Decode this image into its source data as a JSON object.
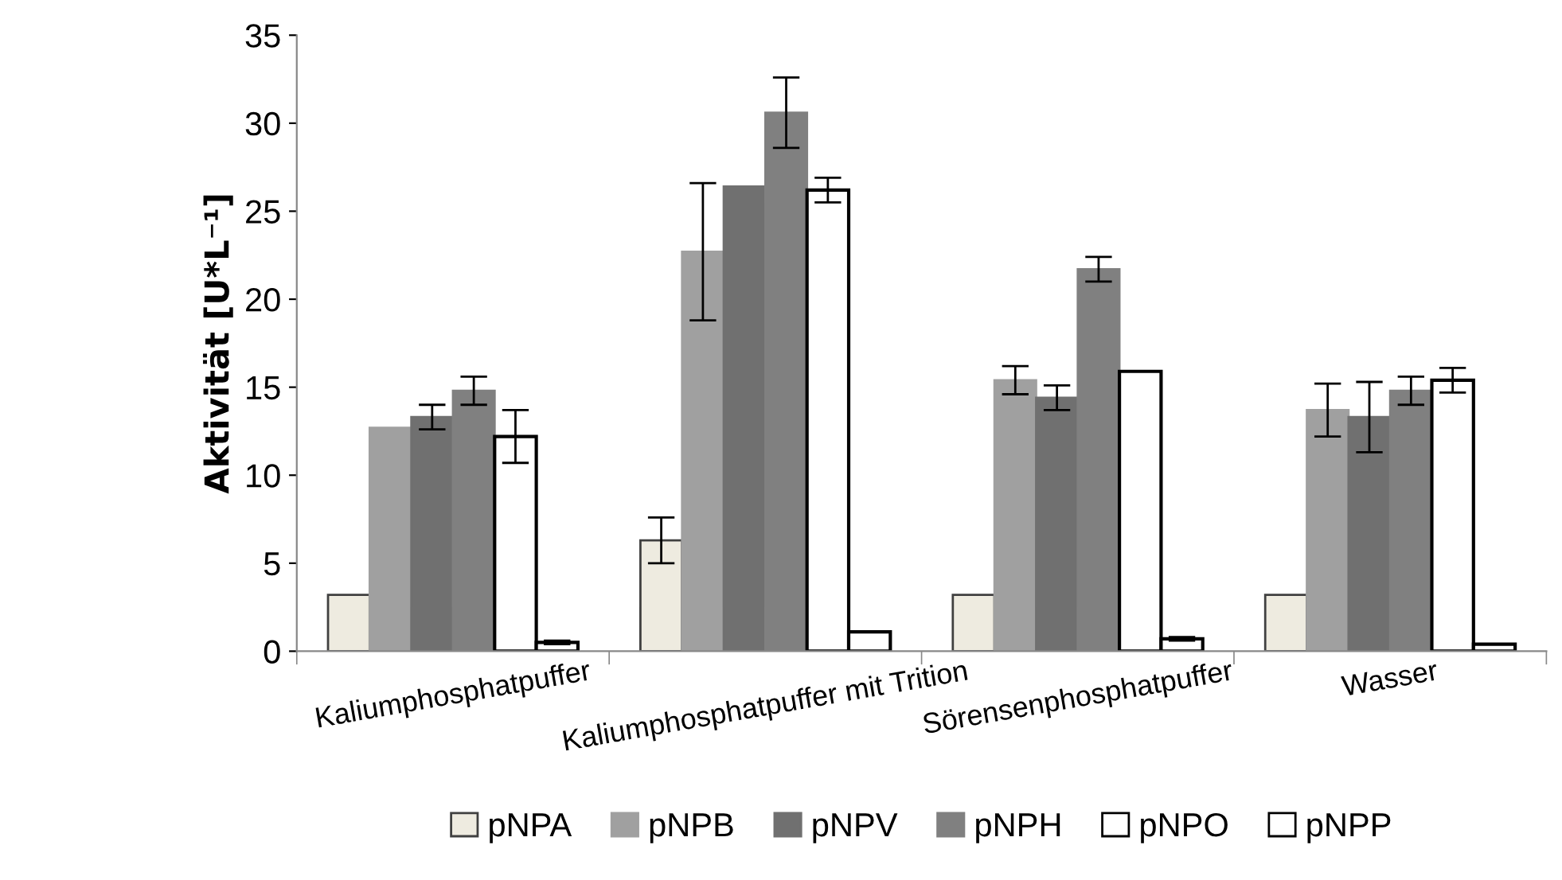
{
  "chart_data": {
    "type": "bar",
    "ylabel": "Aktivität [U*L⁻¹]",
    "categories": [
      "Kaliumphosphatpuffer",
      "Kaliumphosphatpuffer mit Trition",
      "Sörensenphosphatpuffer",
      "Wasser"
    ],
    "series": [
      {
        "name": "pNPA",
        "color": "#eeebe0",
        "values": [
          3.2,
          6.3,
          3.2,
          3.2
        ],
        "errors": [
          null,
          1.3,
          null,
          null
        ]
      },
      {
        "name": "pNPB",
        "color": "#a0a0a0",
        "values": [
          12.7,
          22.7,
          15.4,
          13.7
        ],
        "errors": [
          null,
          3.9,
          0.8,
          1.5
        ]
      },
      {
        "name": "pNPV",
        "color": "#707070",
        "values": [
          13.3,
          26.4,
          14.4,
          13.3
        ],
        "errors": [
          0.7,
          null,
          0.7,
          2.0
        ]
      },
      {
        "name": "pNPH",
        "color": "#808080",
        "values": [
          14.8,
          30.6,
          21.7,
          14.8
        ],
        "errors": [
          0.8,
          2.0,
          0.7,
          0.8
        ]
      },
      {
        "name": "pNPO",
        "color": "#ffffff",
        "values": [
          12.2,
          26.2,
          15.9,
          15.4
        ],
        "errors": [
          1.5,
          0.7,
          null,
          0.7
        ]
      },
      {
        "name": "pNPP",
        "color": "#ffffff",
        "values": [
          0.5,
          1.1,
          0.7,
          0.4
        ],
        "errors": [
          0.1,
          null,
          0.1,
          null
        ]
      }
    ],
    "ylim": [
      0,
      35
    ],
    "yticks": [
      0,
      5,
      10,
      15,
      20,
      25,
      30,
      35
    ],
    "grid": false,
    "legend": "bottom"
  }
}
